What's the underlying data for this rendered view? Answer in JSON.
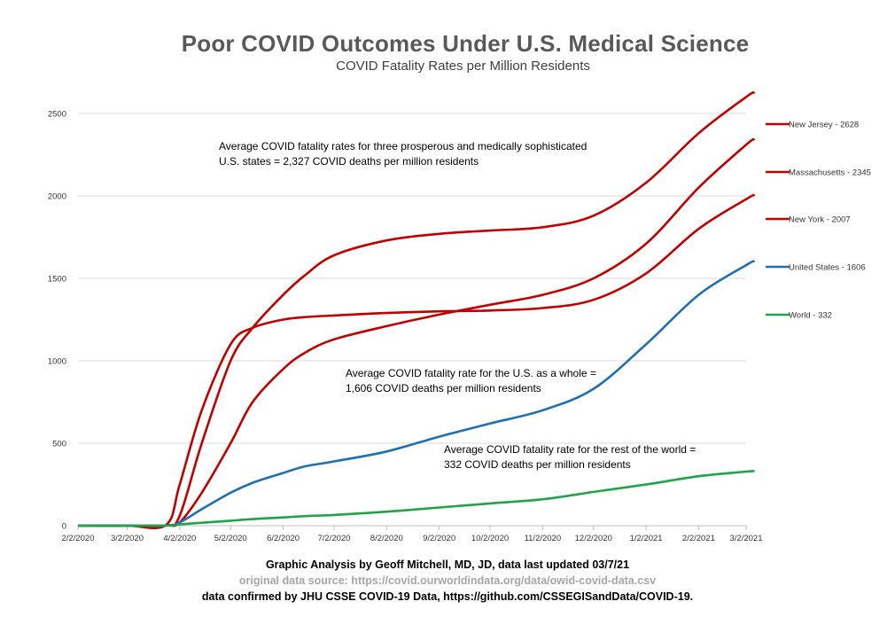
{
  "chart_data": {
    "type": "line",
    "title": "Poor COVID Outcomes Under U.S. Medical Science",
    "subtitle": "COVID Fatality Rates per Million Residents",
    "xlabel": "",
    "ylabel": "",
    "x_tick_labels": [
      "2/2/2020",
      "3/2/2020",
      "4/2/2020",
      "5/2/2020",
      "6/2/2020",
      "7/2/2020",
      "8/2/2020",
      "9/2/2020",
      "10/2/2020",
      "11/2/2020",
      "12/2/2020",
      "1/2/2021",
      "2/2/2021",
      "3/2/2021"
    ],
    "y_ticks": [
      0,
      500,
      1000,
      1500,
      2000,
      2500
    ],
    "ylim": [
      0,
      2500
    ],
    "grid": true,
    "legend_position": "right",
    "x": [
      "2/2/2020",
      "3/2/2020",
      "3/25/2020",
      "4/2/2020",
      "4/15/2020",
      "5/2/2020",
      "5/15/2020",
      "6/2/2020",
      "6/15/2020",
      "7/2/2020",
      "8/2/2020",
      "9/2/2020",
      "10/2/2020",
      "11/2/2020",
      "12/2/2020",
      "1/2/2021",
      "2/2/2021",
      "3/2/2021",
      "3/7/2021"
    ],
    "series": [
      {
        "name": "New Jersey - 2628",
        "color": "#c00000",
        "values": [
          0,
          0,
          2,
          60,
          500,
          1000,
          1200,
          1400,
          1520,
          1640,
          1730,
          1770,
          1790,
          1810,
          1880,
          2080,
          2380,
          2600,
          2628
        ]
      },
      {
        "name": "Massachusetts - 2345",
        "color": "#c00000",
        "values": [
          0,
          0,
          1,
          20,
          200,
          500,
          750,
          950,
          1050,
          1130,
          1210,
          1280,
          1340,
          1400,
          1500,
          1710,
          2050,
          2310,
          2345
        ]
      },
      {
        "name": "New York - 2007",
        "color": "#c00000",
        "values": [
          0,
          0,
          5,
          250,
          700,
          1100,
          1200,
          1250,
          1265,
          1275,
          1290,
          1300,
          1305,
          1320,
          1370,
          1530,
          1800,
          1980,
          2007
        ]
      },
      {
        "name": "United States - 1606",
        "color": "#1f6fb2",
        "values": [
          0,
          0,
          1,
          20,
          100,
          200,
          260,
          320,
          360,
          390,
          450,
          540,
          620,
          700,
          830,
          1100,
          1400,
          1580,
          1606
        ]
      },
      {
        "name": "World - 332",
        "color": "#22a24a",
        "values": [
          0,
          0,
          1,
          8,
          18,
          30,
          40,
          50,
          58,
          65,
          85,
          110,
          135,
          160,
          205,
          250,
          300,
          328,
          332
        ]
      }
    ],
    "annotations": [
      "Average COVID fatality rates for three prosperous and medically sophisticated U.S. states = 2,327 COVID deaths per million residents",
      "Average COVID fatality rate for the U.S. as a whole = 1,606 COVID deaths per million residents",
      "Average COVID fatality rate for the rest of the world = 332 COVID deaths per million residents"
    ]
  },
  "footer": {
    "line1": "Graphic Analysis by Geoff Mitchell, MD, JD, data last updated 03/7/21",
    "line2": "original data source: https://covid.ourworldindata.org/data/owid-covid-data.csv",
    "line3": "data confirmed by JHU CSSE COVID-19 Data, https://github.com/CSSEGISandData/COVID-19."
  }
}
